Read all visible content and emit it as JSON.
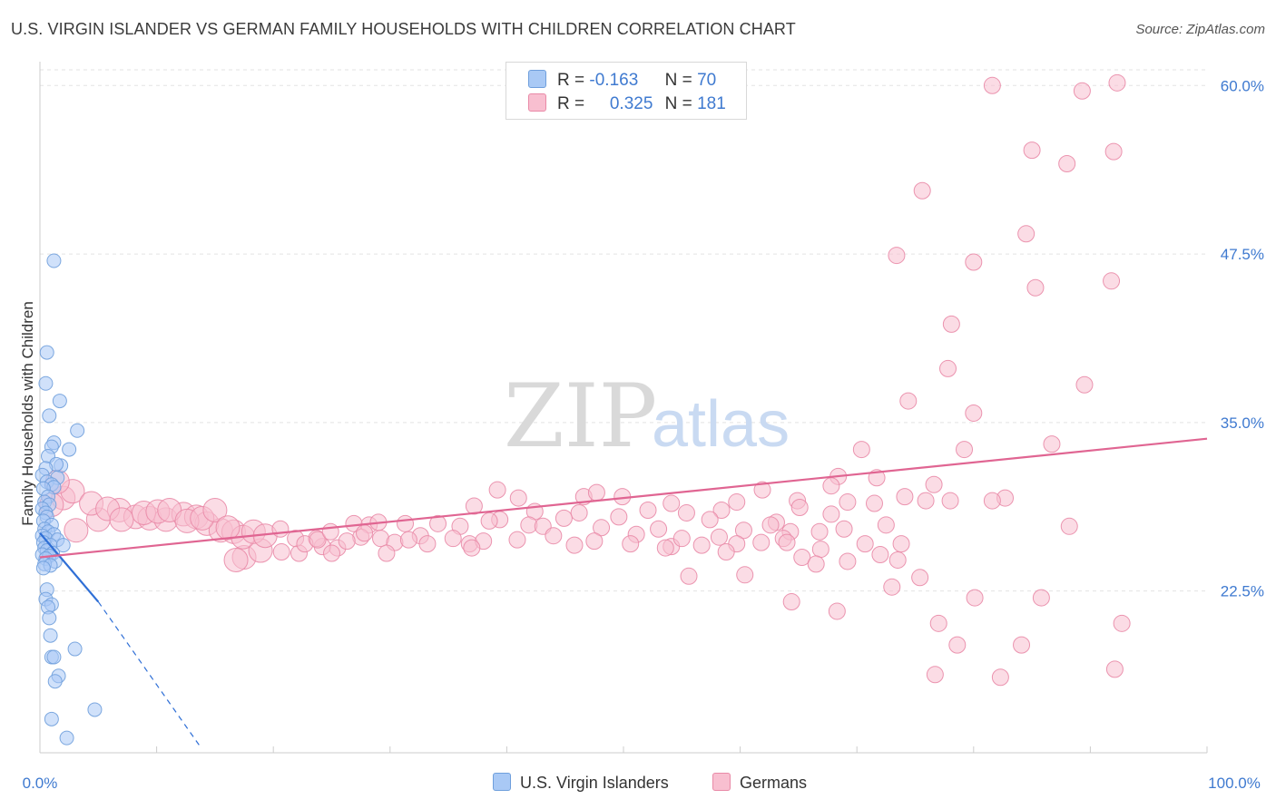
{
  "header": {
    "title": "U.S. VIRGIN ISLANDER VS GERMAN FAMILY HOUSEHOLDS WITH CHILDREN CORRELATION CHART",
    "source": "Source: ZipAtlas.com"
  },
  "watermark": {
    "zip": "ZIP",
    "atlas": "atlas"
  },
  "legend": {
    "rows": [
      {
        "r_label": "R =",
        "r_value": "-0.163",
        "n_label": "N =",
        "n_value": "70",
        "color": "#a9c9f5",
        "border": "#6f9fdc"
      },
      {
        "r_label": "R =",
        "r_value": "0.325",
        "n_label": "N =",
        "n_value": "181",
        "color": "#f8bfd0",
        "border": "#e98aa7"
      }
    ]
  },
  "bottom_legend": {
    "items": [
      {
        "label": "U.S. Virgin Islanders",
        "color": "#a9c9f5",
        "border": "#6f9fdc"
      },
      {
        "label": "Germans",
        "color": "#f8bfd0",
        "border": "#e98aa7"
      }
    ]
  },
  "chart_data": {
    "type": "scatter",
    "title": "U.S. VIRGIN ISLANDER VS GERMAN FAMILY HOUSEHOLDS WITH CHILDREN CORRELATION CHART",
    "xlabel": "",
    "ylabel": "Family Households with Children",
    "xlim": [
      0,
      100
    ],
    "ylim": [
      10.5,
      61.5
    ],
    "x_tick_labels": [
      "0.0%",
      "100.0%"
    ],
    "y_ticks": [
      22.5,
      35.0,
      47.5,
      60.0
    ],
    "y_tick_labels": [
      "22.5%",
      "35.0%",
      "47.5%",
      "60.0%"
    ],
    "grid": true,
    "series": [
      {
        "name": "U.S. Virgin Islanders",
        "color": "#6f9fdc",
        "fill": "#a9c9f5",
        "trend": {
          "x0": 0.0,
          "y0": 26.8,
          "x1": 5.0,
          "y1": 21.7,
          "dash_to_x": 13.7,
          "dash_to_y": 11.0,
          "color": "#2f6fd6"
        },
        "points": [
          [
            1.2,
            47.0
          ],
          [
            0.6,
            40.2
          ],
          [
            0.5,
            37.9
          ],
          [
            1.7,
            36.6
          ],
          [
            0.8,
            35.5
          ],
          [
            3.2,
            34.4
          ],
          [
            1.2,
            33.5
          ],
          [
            2.5,
            33.0
          ],
          [
            1.0,
            33.2
          ],
          [
            0.7,
            32.5
          ],
          [
            1.8,
            31.8
          ],
          [
            1.4,
            31.9
          ],
          [
            0.5,
            31.6
          ],
          [
            0.2,
            31.1
          ],
          [
            1.5,
            30.9
          ],
          [
            0.6,
            30.6
          ],
          [
            1.0,
            30.4
          ],
          [
            1.2,
            30.2
          ],
          [
            0.3,
            30.1
          ],
          [
            0.7,
            29.5
          ],
          [
            0.4,
            29.1
          ],
          [
            0.8,
            28.9
          ],
          [
            0.2,
            28.6
          ],
          [
            0.5,
            28.3
          ],
          [
            0.6,
            28.0
          ],
          [
            0.3,
            27.7
          ],
          [
            1.0,
            27.4
          ],
          [
            0.4,
            27.1
          ],
          [
            0.7,
            26.9
          ],
          [
            1.2,
            26.7
          ],
          [
            0.2,
            26.6
          ],
          [
            0.5,
            26.4
          ],
          [
            1.5,
            26.3
          ],
          [
            0.3,
            26.1
          ],
          [
            0.9,
            25.9
          ],
          [
            2.0,
            25.9
          ],
          [
            0.4,
            25.7
          ],
          [
            0.6,
            25.5
          ],
          [
            1.1,
            25.3
          ],
          [
            0.2,
            25.2
          ],
          [
            0.8,
            25.1
          ],
          [
            0.5,
            24.9
          ],
          [
            1.3,
            24.7
          ],
          [
            0.4,
            24.5
          ],
          [
            0.9,
            24.4
          ],
          [
            0.3,
            24.2
          ],
          [
            0.6,
            22.6
          ],
          [
            0.5,
            21.9
          ],
          [
            1.0,
            21.5
          ],
          [
            0.7,
            21.3
          ],
          [
            0.8,
            20.5
          ],
          [
            0.9,
            19.2
          ],
          [
            3.0,
            18.2
          ],
          [
            1.0,
            17.6
          ],
          [
            1.2,
            17.6
          ],
          [
            1.6,
            16.2
          ],
          [
            1.3,
            15.8
          ],
          [
            4.7,
            13.7
          ],
          [
            1.0,
            13.0
          ],
          [
            2.3,
            11.6
          ]
        ]
      },
      {
        "name": "Germans",
        "color": "#e98aa7",
        "fill": "#f8bfd0",
        "trend": {
          "x0": 0.0,
          "y0": 25.0,
          "x1": 100.0,
          "y1": 33.8,
          "color": "#e06592"
        },
        "points": [
          [
            81.6,
            60.0
          ],
          [
            89.3,
            59.6
          ],
          [
            92.3,
            60.2
          ],
          [
            85.0,
            55.2
          ],
          [
            92.0,
            55.1
          ],
          [
            88.0,
            54.2
          ],
          [
            75.6,
            52.2
          ],
          [
            84.5,
            49.0
          ],
          [
            73.4,
            47.4
          ],
          [
            80.0,
            46.9
          ],
          [
            85.3,
            45.0
          ],
          [
            91.8,
            45.5
          ],
          [
            78.1,
            42.3
          ],
          [
            77.8,
            39.0
          ],
          [
            89.5,
            37.8
          ],
          [
            74.4,
            36.6
          ],
          [
            80.0,
            35.7
          ],
          [
            86.7,
            33.4
          ],
          [
            70.4,
            33.0
          ],
          [
            79.2,
            33.0
          ],
          [
            68.4,
            31.0
          ],
          [
            71.7,
            30.9
          ],
          [
            76.6,
            30.4
          ],
          [
            61.9,
            30.0
          ],
          [
            67.8,
            30.3
          ],
          [
            74.1,
            29.5
          ],
          [
            75.9,
            29.2
          ],
          [
            78.0,
            29.2
          ],
          [
            82.7,
            29.4
          ],
          [
            81.6,
            29.2
          ],
          [
            54.1,
            29.0
          ],
          [
            59.7,
            29.1
          ],
          [
            64.9,
            29.2
          ],
          [
            69.2,
            29.1
          ],
          [
            71.5,
            29.0
          ],
          [
            65.1,
            28.7
          ],
          [
            67.8,
            28.2
          ],
          [
            58.4,
            28.5
          ],
          [
            57.4,
            27.8
          ],
          [
            63.1,
            27.6
          ],
          [
            49.9,
            29.5
          ],
          [
            46.6,
            29.5
          ],
          [
            47.7,
            29.8
          ],
          [
            39.2,
            30.0
          ],
          [
            41.0,
            29.4
          ],
          [
            37.2,
            28.8
          ],
          [
            42.4,
            28.4
          ],
          [
            52.1,
            28.5
          ],
          [
            55.4,
            28.3
          ],
          [
            46.2,
            28.3
          ],
          [
            49.6,
            28.0
          ],
          [
            44.9,
            27.9
          ],
          [
            39.4,
            27.8
          ],
          [
            38.5,
            27.7
          ],
          [
            34.1,
            27.5
          ],
          [
            28.2,
            27.4
          ],
          [
            31.3,
            27.5
          ],
          [
            36.0,
            27.3
          ],
          [
            41.9,
            27.4
          ],
          [
            43.1,
            27.3
          ],
          [
            48.1,
            27.2
          ],
          [
            53.0,
            27.1
          ],
          [
            60.3,
            27.0
          ],
          [
            62.6,
            27.4
          ],
          [
            64.3,
            26.9
          ],
          [
            66.8,
            26.9
          ],
          [
            68.9,
            27.1
          ],
          [
            72.5,
            27.4
          ],
          [
            88.2,
            27.3
          ],
          [
            58.2,
            26.5
          ],
          [
            63.7,
            26.4
          ],
          [
            51.1,
            26.7
          ],
          [
            44.0,
            26.6
          ],
          [
            32.6,
            26.6
          ],
          [
            29.2,
            26.4
          ],
          [
            30.4,
            26.1
          ],
          [
            35.4,
            26.4
          ],
          [
            36.8,
            26.0
          ],
          [
            38.0,
            26.2
          ],
          [
            40.9,
            26.3
          ],
          [
            47.5,
            26.2
          ],
          [
            45.8,
            25.9
          ],
          [
            50.6,
            26.0
          ],
          [
            54.1,
            25.8
          ],
          [
            55.0,
            26.4
          ],
          [
            56.7,
            25.9
          ],
          [
            59.7,
            26.0
          ],
          [
            61.8,
            26.1
          ],
          [
            64.0,
            26.1
          ],
          [
            66.9,
            25.6
          ],
          [
            70.7,
            26.0
          ],
          [
            73.8,
            26.0
          ],
          [
            53.6,
            25.7
          ],
          [
            37.0,
            25.7
          ],
          [
            29.7,
            25.3
          ],
          [
            25.5,
            25.7
          ],
          [
            24.2,
            25.8
          ],
          [
            20.7,
            25.4
          ],
          [
            17.5,
            25.0
          ],
          [
            16.8,
            24.8
          ],
          [
            18.9,
            25.5
          ],
          [
            22.2,
            25.3
          ],
          [
            25.0,
            25.3
          ],
          [
            58.8,
            25.4
          ],
          [
            65.3,
            25.0
          ],
          [
            72.0,
            25.2
          ],
          [
            73.5,
            24.8
          ],
          [
            69.2,
            24.7
          ],
          [
            66.5,
            24.5
          ],
          [
            55.6,
            23.6
          ],
          [
            60.4,
            23.7
          ],
          [
            75.4,
            23.5
          ],
          [
            73.0,
            22.8
          ],
          [
            80.1,
            22.0
          ],
          [
            85.8,
            22.0
          ],
          [
            64.4,
            21.7
          ],
          [
            68.3,
            21.0
          ],
          [
            77.0,
            20.1
          ],
          [
            92.7,
            20.1
          ],
          [
            78.6,
            18.5
          ],
          [
            84.1,
            18.5
          ],
          [
            76.7,
            16.3
          ],
          [
            82.3,
            16.1
          ],
          [
            92.1,
            16.7
          ],
          [
            29.0,
            27.6
          ],
          [
            23.7,
            26.4
          ],
          [
            27.5,
            26.5
          ],
          [
            26.3,
            26.2
          ],
          [
            31.6,
            26.3
          ],
          [
            33.2,
            26.0
          ],
          [
            5.0,
            27.8
          ],
          [
            6.8,
            28.5
          ],
          [
            8.2,
            28.0
          ],
          [
            9.4,
            27.9
          ],
          [
            10.8,
            27.8
          ],
          [
            12.3,
            28.2
          ],
          [
            13.4,
            28.0
          ],
          [
            14.3,
            27.5
          ],
          [
            15.5,
            27.0
          ],
          [
            16.6,
            26.9
          ],
          [
            17.4,
            26.5
          ],
          [
            18.3,
            26.9
          ],
          [
            19.3,
            26.6
          ],
          [
            20.6,
            27.1
          ],
          [
            21.9,
            26.4
          ],
          [
            22.7,
            26.0
          ],
          [
            23.8,
            26.3
          ],
          [
            24.9,
            26.9
          ],
          [
            26.9,
            27.5
          ],
          [
            27.8,
            26.8
          ],
          [
            2.0,
            29.4
          ],
          [
            2.8,
            29.9
          ],
          [
            3.1,
            27.0
          ],
          [
            4.4,
            29.0
          ],
          [
            5.8,
            28.6
          ],
          [
            7.0,
            27.8
          ],
          [
            8.9,
            28.3
          ],
          [
            10.1,
            28.4
          ],
          [
            11.1,
            28.5
          ],
          [
            12.6,
            27.7
          ],
          [
            13.9,
            27.9
          ],
          [
            15.0,
            28.5
          ],
          [
            16.1,
            27.2
          ],
          [
            1.5,
            30.6
          ],
          [
            1.0,
            28.9
          ]
        ]
      }
    ]
  }
}
